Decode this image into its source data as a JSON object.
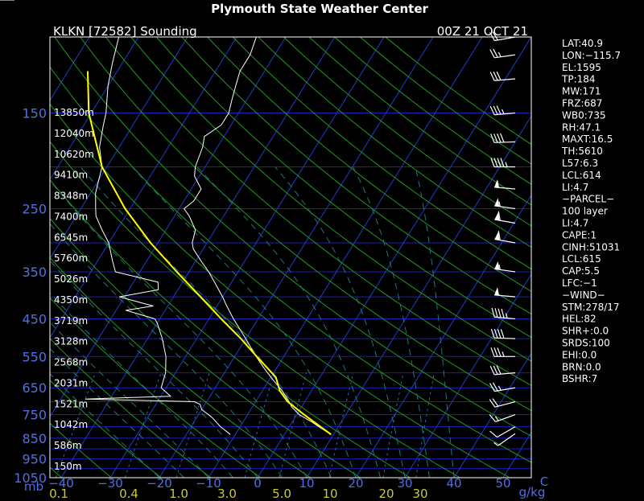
{
  "page_title": "Plymouth State Weather Center",
  "header": {
    "station": "KLKN [72582] Sounding",
    "time": "00Z 21 OCT 21"
  },
  "colors": {
    "background": "#000000",
    "frame": "#ffffff",
    "isobar": "#1c1cb4",
    "isotherm": "#1e3cc8",
    "dry_adiabat": "#1f9a1f",
    "moist_adiabat": "#1e7878",
    "mixing_ratio": "#2a6aa8",
    "pressure_label": "#4f6fe6",
    "mixing_label": "#c8c83c",
    "sounding": "#ffffff",
    "parcel": "#ffff00",
    "barbs": "#ffffff"
  },
  "chart_data": {
    "type": "skew-t",
    "x_unit": "C",
    "y_unit": "mb",
    "mixing_ratio_unit": "g/kg",
    "pressure_range": [
      1050,
      100
    ],
    "temperature_ticks": [
      "−40",
      "−30",
      "−20",
      "−10",
      "0",
      "10",
      "20",
      "30",
      "40",
      "50"
    ],
    "pressure_labels": [
      "150",
      "250",
      "350",
      "450",
      "550",
      "650",
      "750",
      "850",
      "950",
      "1050"
    ],
    "height_labels": [
      "13850m",
      "12040m",
      "10620m",
      "9410m",
      "8348m",
      "7400m",
      "6545m",
      "5760m",
      "5026m",
      "4350m",
      "3719m",
      "3128m",
      "2568m",
      "2031m",
      "1521m",
      "1042m",
      "586m",
      "150m"
    ],
    "mixing_ratio_ticks": [
      "0.1",
      "0.4",
      "1.0",
      "3.0",
      "5.0",
      "10",
      "20",
      "30"
    ],
    "temperature_profile": [
      [
        834,
        9.5
      ],
      [
        800,
        6.0
      ],
      [
        780,
        4.0
      ],
      [
        750,
        0.5
      ],
      [
        720,
        -2.0
      ],
      [
        700,
        -3.2
      ],
      [
        660,
        -6.0
      ],
      [
        620,
        -9.5
      ],
      [
        580,
        -13.0
      ],
      [
        540,
        -16.5
      ],
      [
        500,
        -20.0
      ],
      [
        450,
        -25.0
      ],
      [
        420,
        -28.0
      ],
      [
        400,
        -30.0
      ],
      [
        370,
        -33.5
      ],
      [
        350,
        -36.0
      ],
      [
        330,
        -39.0
      ],
      [
        310,
        -42.0
      ],
      [
        300,
        -43.0
      ],
      [
        280,
        -44.0
      ],
      [
        260,
        -47.0
      ],
      [
        250,
        -49.0
      ],
      [
        240,
        -48.0
      ],
      [
        225,
        -48.0
      ],
      [
        210,
        -51.0
      ],
      [
        200,
        -52.0
      ],
      [
        180,
        -53.0
      ],
      [
        170,
        -54.0
      ],
      [
        160,
        -52.0
      ],
      [
        150,
        -52.0
      ],
      [
        140,
        -53.0
      ],
      [
        130,
        -54.0
      ],
      [
        120,
        -55.0
      ],
      [
        110,
        -55.0
      ],
      [
        100,
        -56.0
      ]
    ],
    "dewpoint_profile": [
      [
        834,
        -11.0
      ],
      [
        800,
        -14.0
      ],
      [
        760,
        -17.0
      ],
      [
        730,
        -20.0
      ],
      [
        710,
        -21.0
      ],
      [
        700,
        -22.5
      ],
      [
        690,
        -45.0
      ],
      [
        680,
        -28.0
      ],
      [
        650,
        -31.0
      ],
      [
        600,
        -32.0
      ],
      [
        550,
        -34.0
      ],
      [
        500,
        -37.0
      ],
      [
        460,
        -40.0
      ],
      [
        450,
        -41.0
      ],
      [
        430,
        -48.0
      ],
      [
        420,
        -43.0
      ],
      [
        400,
        -51.0
      ],
      [
        385,
        -44.0
      ],
      [
        370,
        -45.0
      ],
      [
        350,
        -55.0
      ],
      [
        330,
        -57.0
      ],
      [
        300,
        -60.0
      ],
      [
        280,
        -63.0
      ],
      [
        260,
        -66.0
      ],
      [
        250,
        -67.0
      ],
      [
        230,
        -69.0
      ],
      [
        200,
        -71.0
      ],
      [
        180,
        -74.0
      ],
      [
        160,
        -76.0
      ],
      [
        150,
        -77.0
      ],
      [
        130,
        -80.0
      ],
      [
        115,
        -82.0
      ],
      [
        100,
        -84.0
      ]
    ],
    "parcel_profile": [
      [
        834,
        9.5
      ],
      [
        750,
        1.5
      ],
      [
        700,
        -3.5
      ],
      [
        660,
        -6.5
      ],
      [
        614,
        -9.0
      ],
      [
        550,
        -15.5
      ],
      [
        500,
        -21.0
      ],
      [
        450,
        -27.5
      ],
      [
        400,
        -34.5
      ],
      [
        350,
        -42.5
      ],
      [
        300,
        -51.5
      ],
      [
        250,
        -61.0
      ],
      [
        200,
        -71.0
      ],
      [
        150,
        -80.5
      ],
      [
        120,
        -86.0
      ]
    ],
    "wind_profile": [
      [
        830,
        235,
        5
      ],
      [
        800,
        240,
        10
      ],
      [
        750,
        250,
        15
      ],
      [
        700,
        255,
        20
      ],
      [
        650,
        260,
        25
      ],
      [
        600,
        265,
        30
      ],
      [
        550,
        270,
        35
      ],
      [
        500,
        272,
        40
      ],
      [
        450,
        275,
        45
      ],
      [
        400,
        275,
        50
      ],
      [
        350,
        278,
        55
      ],
      [
        300,
        280,
        60
      ],
      [
        270,
        280,
        60
      ],
      [
        250,
        278,
        55
      ],
      [
        225,
        275,
        50
      ],
      [
        200,
        270,
        45
      ],
      [
        175,
        268,
        40
      ],
      [
        150,
        265,
        35
      ],
      [
        125,
        265,
        30
      ],
      [
        110,
        262,
        25
      ],
      [
        100,
        260,
        20
      ]
    ]
  },
  "stats_panel": {
    "lines": [
      "LAT:40.9",
      "LON:−115.7",
      "EL:1595",
      "TP:184",
      "MW:171",
      "FRZ:687",
      "WB0:735",
      "RH:47.1",
      "MAXT:16.5",
      "TH:5610",
      "L57:6.3",
      "LCL:614",
      "LI:4.7",
      "−PARCEL−",
      "100 layer",
      "LI:4.7",
      "CAPE:1",
      "CINH:51031",
      "LCL:615",
      "CAP:5.5",
      "LFC:−1",
      "−WIND−",
      "STM:278/17",
      "HEL:82",
      "SHR+:0.0",
      "SRDS:100",
      "EHI:0.0",
      "BRN:0.0",
      "BSHR:7"
    ]
  }
}
